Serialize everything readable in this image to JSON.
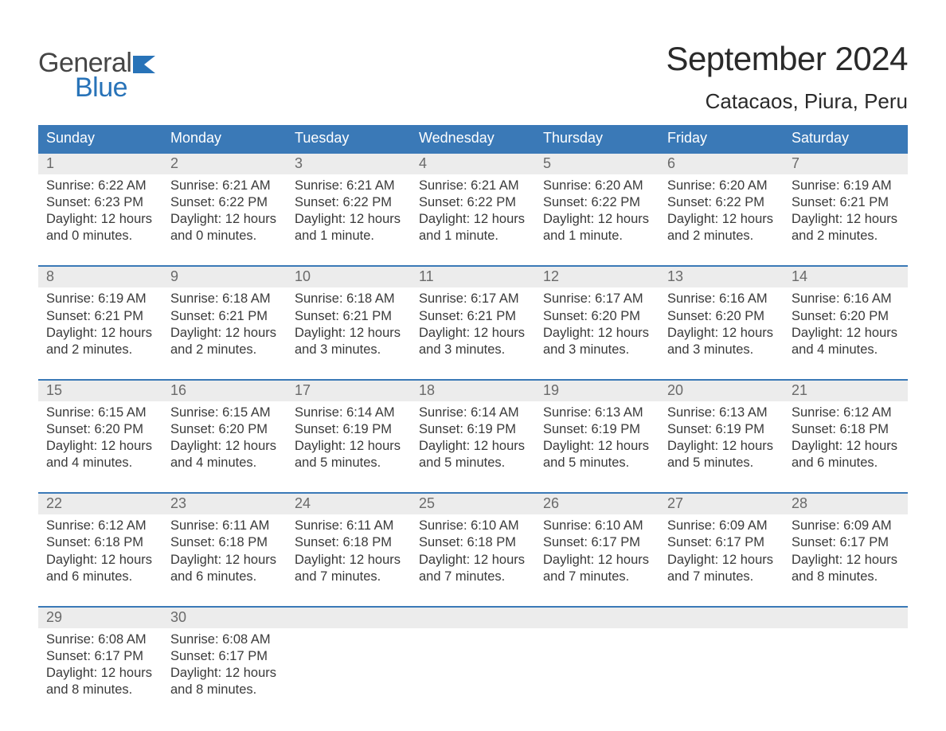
{
  "logo": {
    "word1": "General",
    "word2": "Blue"
  },
  "title": "September 2024",
  "location": "Catacaos, Piura, Peru",
  "colors": {
    "header_bg": "#3a79b7",
    "header_text": "#ffffff",
    "daynum_bg": "#ececec",
    "daynum_text": "#6a6a6a",
    "body_text": "#3a3a3a",
    "accent": "#2873b8",
    "week_border": "#3a79b7"
  },
  "typography": {
    "title_fontsize": 42,
    "location_fontsize": 26,
    "dow_fontsize": 18,
    "daynum_fontsize": 18,
    "body_fontsize": 16.5
  },
  "day_labels": [
    "Sunday",
    "Monday",
    "Tuesday",
    "Wednesday",
    "Thursday",
    "Friday",
    "Saturday"
  ],
  "weeks": [
    [
      {
        "n": "1",
        "sunrise": "Sunrise: 6:22 AM",
        "sunset": "Sunset: 6:23 PM",
        "d1": "Daylight: 12 hours",
        "d2": "and 0 minutes."
      },
      {
        "n": "2",
        "sunrise": "Sunrise: 6:21 AM",
        "sunset": "Sunset: 6:22 PM",
        "d1": "Daylight: 12 hours",
        "d2": "and 0 minutes."
      },
      {
        "n": "3",
        "sunrise": "Sunrise: 6:21 AM",
        "sunset": "Sunset: 6:22 PM",
        "d1": "Daylight: 12 hours",
        "d2": "and 1 minute."
      },
      {
        "n": "4",
        "sunrise": "Sunrise: 6:21 AM",
        "sunset": "Sunset: 6:22 PM",
        "d1": "Daylight: 12 hours",
        "d2": "and 1 minute."
      },
      {
        "n": "5",
        "sunrise": "Sunrise: 6:20 AM",
        "sunset": "Sunset: 6:22 PM",
        "d1": "Daylight: 12 hours",
        "d2": "and 1 minute."
      },
      {
        "n": "6",
        "sunrise": "Sunrise: 6:20 AM",
        "sunset": "Sunset: 6:22 PM",
        "d1": "Daylight: 12 hours",
        "d2": "and 2 minutes."
      },
      {
        "n": "7",
        "sunrise": "Sunrise: 6:19 AM",
        "sunset": "Sunset: 6:21 PM",
        "d1": "Daylight: 12 hours",
        "d2": "and 2 minutes."
      }
    ],
    [
      {
        "n": "8",
        "sunrise": "Sunrise: 6:19 AM",
        "sunset": "Sunset: 6:21 PM",
        "d1": "Daylight: 12 hours",
        "d2": "and 2 minutes."
      },
      {
        "n": "9",
        "sunrise": "Sunrise: 6:18 AM",
        "sunset": "Sunset: 6:21 PM",
        "d1": "Daylight: 12 hours",
        "d2": "and 2 minutes."
      },
      {
        "n": "10",
        "sunrise": "Sunrise: 6:18 AM",
        "sunset": "Sunset: 6:21 PM",
        "d1": "Daylight: 12 hours",
        "d2": "and 3 minutes."
      },
      {
        "n": "11",
        "sunrise": "Sunrise: 6:17 AM",
        "sunset": "Sunset: 6:21 PM",
        "d1": "Daylight: 12 hours",
        "d2": "and 3 minutes."
      },
      {
        "n": "12",
        "sunrise": "Sunrise: 6:17 AM",
        "sunset": "Sunset: 6:20 PM",
        "d1": "Daylight: 12 hours",
        "d2": "and 3 minutes."
      },
      {
        "n": "13",
        "sunrise": "Sunrise: 6:16 AM",
        "sunset": "Sunset: 6:20 PM",
        "d1": "Daylight: 12 hours",
        "d2": "and 3 minutes."
      },
      {
        "n": "14",
        "sunrise": "Sunrise: 6:16 AM",
        "sunset": "Sunset: 6:20 PM",
        "d1": "Daylight: 12 hours",
        "d2": "and 4 minutes."
      }
    ],
    [
      {
        "n": "15",
        "sunrise": "Sunrise: 6:15 AM",
        "sunset": "Sunset: 6:20 PM",
        "d1": "Daylight: 12 hours",
        "d2": "and 4 minutes."
      },
      {
        "n": "16",
        "sunrise": "Sunrise: 6:15 AM",
        "sunset": "Sunset: 6:20 PM",
        "d1": "Daylight: 12 hours",
        "d2": "and 4 minutes."
      },
      {
        "n": "17",
        "sunrise": "Sunrise: 6:14 AM",
        "sunset": "Sunset: 6:19 PM",
        "d1": "Daylight: 12 hours",
        "d2": "and 5 minutes."
      },
      {
        "n": "18",
        "sunrise": "Sunrise: 6:14 AM",
        "sunset": "Sunset: 6:19 PM",
        "d1": "Daylight: 12 hours",
        "d2": "and 5 minutes."
      },
      {
        "n": "19",
        "sunrise": "Sunrise: 6:13 AM",
        "sunset": "Sunset: 6:19 PM",
        "d1": "Daylight: 12 hours",
        "d2": "and 5 minutes."
      },
      {
        "n": "20",
        "sunrise": "Sunrise: 6:13 AM",
        "sunset": "Sunset: 6:19 PM",
        "d1": "Daylight: 12 hours",
        "d2": "and 5 minutes."
      },
      {
        "n": "21",
        "sunrise": "Sunrise: 6:12 AM",
        "sunset": "Sunset: 6:18 PM",
        "d1": "Daylight: 12 hours",
        "d2": "and 6 minutes."
      }
    ],
    [
      {
        "n": "22",
        "sunrise": "Sunrise: 6:12 AM",
        "sunset": "Sunset: 6:18 PM",
        "d1": "Daylight: 12 hours",
        "d2": "and 6 minutes."
      },
      {
        "n": "23",
        "sunrise": "Sunrise: 6:11 AM",
        "sunset": "Sunset: 6:18 PM",
        "d1": "Daylight: 12 hours",
        "d2": "and 6 minutes."
      },
      {
        "n": "24",
        "sunrise": "Sunrise: 6:11 AM",
        "sunset": "Sunset: 6:18 PM",
        "d1": "Daylight: 12 hours",
        "d2": "and 7 minutes."
      },
      {
        "n": "25",
        "sunrise": "Sunrise: 6:10 AM",
        "sunset": "Sunset: 6:18 PM",
        "d1": "Daylight: 12 hours",
        "d2": "and 7 minutes."
      },
      {
        "n": "26",
        "sunrise": "Sunrise: 6:10 AM",
        "sunset": "Sunset: 6:17 PM",
        "d1": "Daylight: 12 hours",
        "d2": "and 7 minutes."
      },
      {
        "n": "27",
        "sunrise": "Sunrise: 6:09 AM",
        "sunset": "Sunset: 6:17 PM",
        "d1": "Daylight: 12 hours",
        "d2": "and 7 minutes."
      },
      {
        "n": "28",
        "sunrise": "Sunrise: 6:09 AM",
        "sunset": "Sunset: 6:17 PM",
        "d1": "Daylight: 12 hours",
        "d2": "and 8 minutes."
      }
    ],
    [
      {
        "n": "29",
        "sunrise": "Sunrise: 6:08 AM",
        "sunset": "Sunset: 6:17 PM",
        "d1": "Daylight: 12 hours",
        "d2": "and 8 minutes."
      },
      {
        "n": "30",
        "sunrise": "Sunrise: 6:08 AM",
        "sunset": "Sunset: 6:17 PM",
        "d1": "Daylight: 12 hours",
        "d2": "and 8 minutes."
      },
      null,
      null,
      null,
      null,
      null
    ]
  ]
}
